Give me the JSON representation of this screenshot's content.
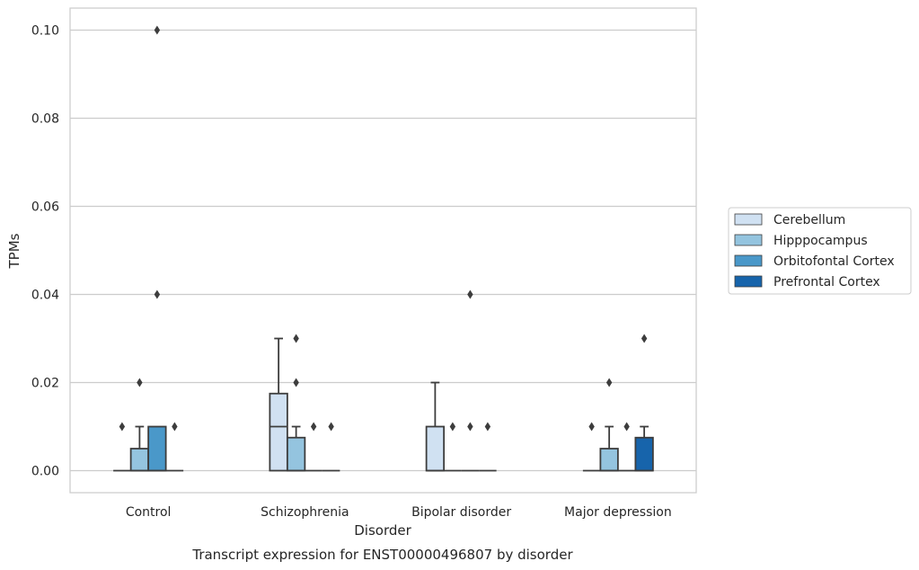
{
  "chart_data": {
    "type": "box",
    "title": "Transcript expression for ENST00000496807 by disorder",
    "xlabel": "Disorder",
    "ylabel": "TPMs",
    "ylim": [
      -0.005,
      0.105
    ],
    "yticks": [
      "0.00",
      "0.02",
      "0.04",
      "0.06",
      "0.08",
      "0.10"
    ],
    "grid": true,
    "legend_position": "right",
    "categories": [
      "Control",
      "Schizophrenia",
      "Bipolar disorder",
      "Major depression"
    ],
    "series": [
      {
        "name": "Cerebellum",
        "color": "#d0e1f2",
        "boxes": [
          {
            "q1": 0,
            "median": 0,
            "q3": 0,
            "whisker_low": 0,
            "whisker_high": 0,
            "outliers": [
              0.01
            ]
          },
          {
            "q1": 0,
            "median": 0.01,
            "q3": 0.0175,
            "whisker_low": 0,
            "whisker_high": 0.03,
            "outliers": []
          },
          {
            "q1": 0,
            "median": 0,
            "q3": 0.01,
            "whisker_low": 0,
            "whisker_high": 0.02,
            "outliers": []
          },
          {
            "q1": 0,
            "median": 0,
            "q3": 0,
            "whisker_low": 0,
            "whisker_high": 0,
            "outliers": [
              0.01
            ]
          }
        ]
      },
      {
        "name": "Hipppocampus",
        "color": "#94c4df",
        "boxes": [
          {
            "q1": 0,
            "median": 0,
            "q3": 0.005,
            "whisker_low": 0,
            "whisker_high": 0.01,
            "outliers": [
              0.02
            ]
          },
          {
            "q1": 0,
            "median": 0,
            "q3": 0.0075,
            "whisker_low": 0,
            "whisker_high": 0.01,
            "outliers": [
              0.02,
              0.03
            ]
          },
          {
            "q1": 0,
            "median": 0,
            "q3": 0,
            "whisker_low": 0,
            "whisker_high": 0,
            "outliers": [
              0.01
            ]
          },
          {
            "q1": 0,
            "median": 0,
            "q3": 0.005,
            "whisker_low": 0,
            "whisker_high": 0.01,
            "outliers": [
              0.02
            ]
          }
        ]
      },
      {
        "name": "Orbitofontal Cortex",
        "color": "#4a98c9",
        "boxes": [
          {
            "q1": 0,
            "median": 0,
            "q3": 0.01,
            "whisker_low": 0,
            "whisker_high": 0.01,
            "outliers": [
              0.04,
              0.1
            ]
          },
          {
            "q1": 0,
            "median": 0,
            "q3": 0,
            "whisker_low": 0,
            "whisker_high": 0,
            "outliers": [
              0.01
            ]
          },
          {
            "q1": 0,
            "median": 0,
            "q3": 0,
            "whisker_low": 0,
            "whisker_high": 0,
            "outliers": [
              0.01,
              0.04
            ]
          },
          {
            "q1": 0,
            "median": 0,
            "q3": 0,
            "whisker_low": 0,
            "whisker_high": 0,
            "outliers": [
              0.01
            ]
          }
        ]
      },
      {
        "name": "Prefrontal Cortex",
        "color": "#1764ab",
        "boxes": [
          {
            "q1": 0,
            "median": 0,
            "q3": 0,
            "whisker_low": 0,
            "whisker_high": 0,
            "outliers": [
              0.01
            ]
          },
          {
            "q1": 0,
            "median": 0,
            "q3": 0,
            "whisker_low": 0,
            "whisker_high": 0,
            "outliers": [
              0.01
            ]
          },
          {
            "q1": 0,
            "median": 0,
            "q3": 0,
            "whisker_low": 0,
            "whisker_high": 0,
            "outliers": [
              0.01
            ]
          },
          {
            "q1": 0,
            "median": 0,
            "q3": 0.0075,
            "whisker_low": 0,
            "whisker_high": 0.01,
            "outliers": [
              0.03
            ]
          }
        ]
      }
    ]
  }
}
